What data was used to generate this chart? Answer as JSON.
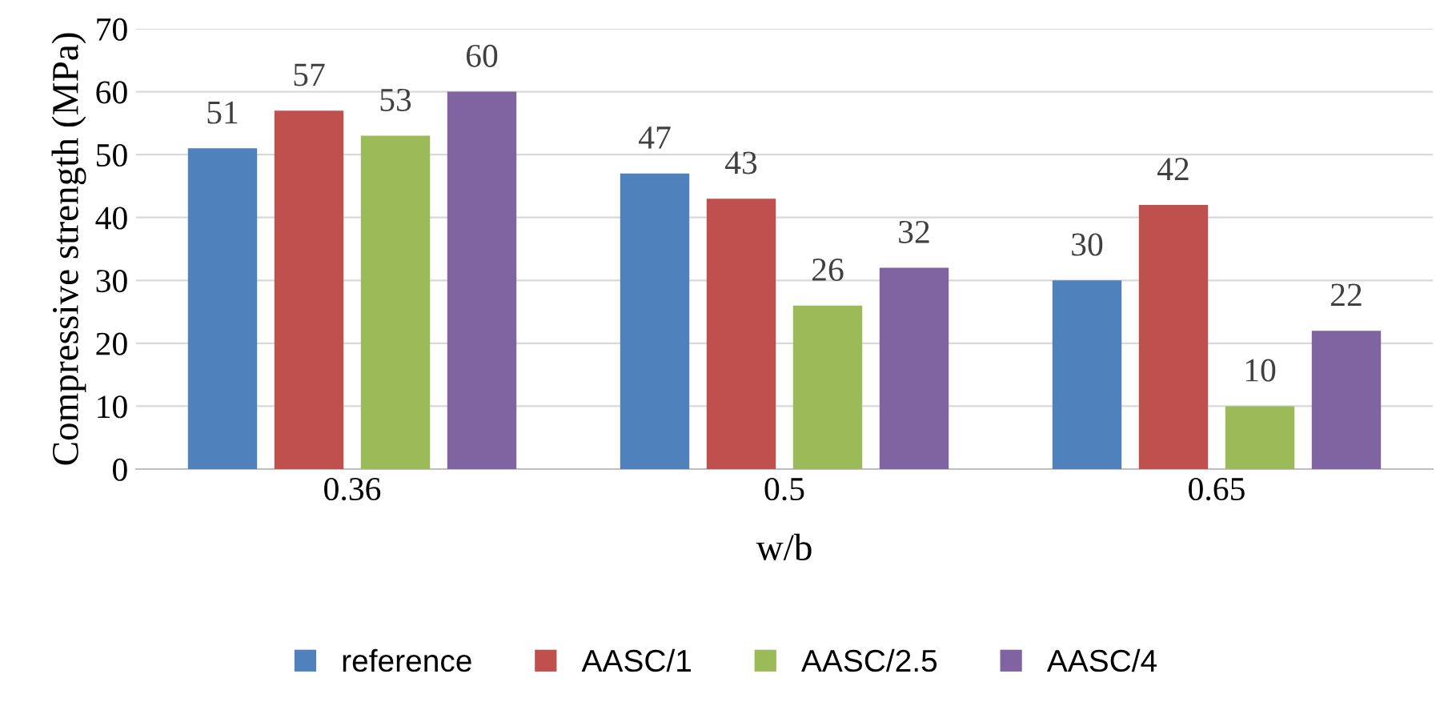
{
  "chart_data": {
    "type": "bar",
    "xlabel": "w/b",
    "ylabel": "Compressive strength (MPa)",
    "categories": [
      "0.36",
      "0.5",
      "0.65"
    ],
    "series": [
      {
        "name": "reference",
        "color": "#4f81bd",
        "values": [
          51,
          47,
          30
        ]
      },
      {
        "name": "AASC/1",
        "color": "#c0504d",
        "values": [
          57,
          43,
          42
        ]
      },
      {
        "name": "AASC/2.5",
        "color": "#9bbb59",
        "values": [
          53,
          26,
          10
        ]
      },
      {
        "name": "AASC/4",
        "color": "#8064a2",
        "values": [
          60,
          32,
          22
        ]
      }
    ],
    "ylim": [
      0,
      70
    ],
    "yticks": [
      0,
      10,
      20,
      30,
      40,
      50,
      60,
      70
    ],
    "grid": "y",
    "legend": "bottom",
    "data_labels": true
  }
}
